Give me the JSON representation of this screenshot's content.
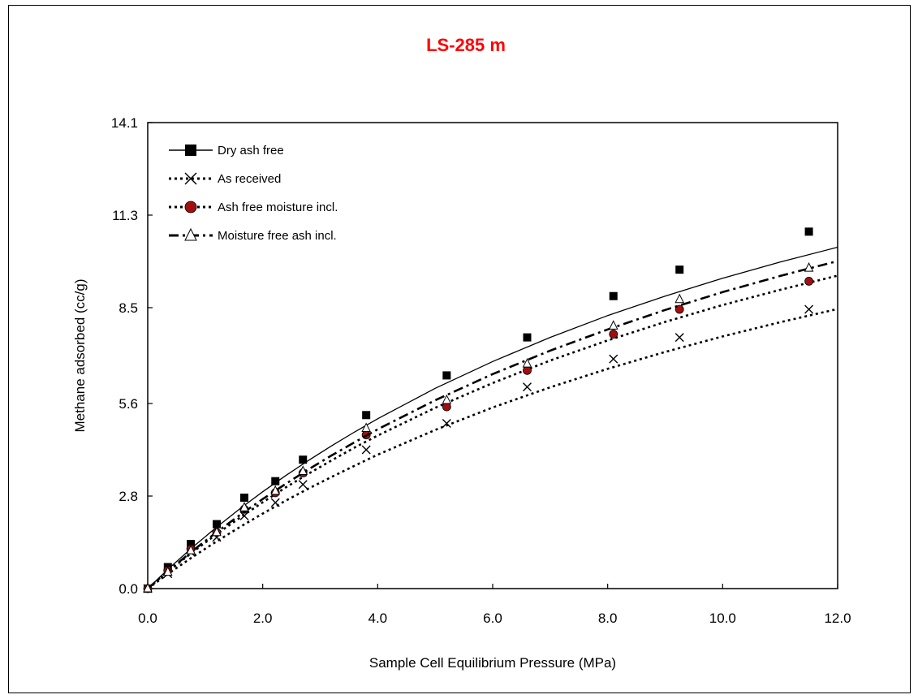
{
  "chart_data": {
    "type": "scatter",
    "title": "LS-285 m",
    "title_color": "#ff0000",
    "xlabel": "Sample Cell Equilibrium Pressure (MPa)",
    "ylabel": "Methane adsorbed (cc/g)",
    "xlim": [
      0.0,
      12.0
    ],
    "ylim": [
      0.0,
      14.1
    ],
    "x_ticks": [
      "0.0",
      "2.0",
      "4.0",
      "6.0",
      "8.0",
      "10.0",
      "12.0"
    ],
    "y_ticks": [
      "0.0",
      "2.8",
      "5.6",
      "8.5",
      "11.3",
      "14.1"
    ],
    "grid": false,
    "legend_position": "top-left",
    "series": [
      {
        "name": "Dry ash free",
        "marker": "filled-square",
        "line": "solid",
        "x": [
          0.0,
          0.35,
          0.75,
          1.2,
          1.68,
          2.22,
          2.7,
          3.8,
          5.2,
          6.6,
          8.1,
          9.25,
          11.5
        ],
        "y": [
          0.0,
          0.65,
          1.35,
          1.95,
          2.75,
          3.25,
          3.9,
          5.25,
          6.45,
          7.6,
          8.85,
          9.65,
          10.8
        ],
        "fit_y_at_x": [
          0.0,
          0.4,
          0.8,
          1.2,
          1.6,
          2.0,
          2.4,
          2.8,
          3.2,
          3.6,
          4.0,
          5.0,
          6.0,
          7.0,
          8.0,
          9.0,
          10.0,
          11.0,
          12.0
        ],
        "fit_y": [
          0.0,
          0.66,
          1.28,
          1.86,
          2.41,
          2.93,
          3.42,
          3.88,
          4.32,
          4.74,
          5.14,
          6.06,
          6.87,
          7.6,
          8.26,
          8.85,
          9.39,
          9.88,
          10.33
        ]
      },
      {
        "name": "As received",
        "marker": "cross",
        "line": "dotted",
        "x": [
          0.0,
          0.35,
          0.75,
          1.2,
          1.68,
          2.22,
          2.7,
          3.8,
          5.2,
          6.6,
          8.1,
          9.25,
          11.5
        ],
        "y": [
          0.0,
          0.45,
          1.1,
          1.55,
          2.2,
          2.6,
          3.15,
          4.2,
          5.0,
          6.1,
          6.95,
          7.6,
          8.45
        ],
        "fit_y_at_x": [
          0.0,
          0.4,
          0.8,
          1.2,
          1.6,
          2.0,
          2.4,
          2.8,
          3.2,
          3.6,
          4.0,
          5.0,
          6.0,
          7.0,
          8.0,
          9.0,
          10.0,
          11.0,
          12.0
        ],
        "fit_y": [
          0.0,
          0.5,
          0.98,
          1.43,
          1.86,
          2.27,
          2.66,
          3.03,
          3.38,
          3.72,
          4.05,
          4.8,
          5.48,
          6.09,
          6.65,
          7.16,
          7.63,
          8.06,
          8.46
        ]
      },
      {
        "name": "Ash free moisture incl.",
        "marker": "filled-circle",
        "line": "dotted",
        "marker_fill": "#a01010",
        "x": [
          0.0,
          0.35,
          0.75,
          1.2,
          1.68,
          2.22,
          2.7,
          3.8,
          5.2,
          6.6,
          8.1,
          9.25,
          11.5
        ],
        "y": [
          0.0,
          0.55,
          1.2,
          1.7,
          2.4,
          2.9,
          3.5,
          4.65,
          5.5,
          6.6,
          7.7,
          8.45,
          9.3
        ],
        "fit_y_at_x": [
          0.0,
          0.4,
          0.8,
          1.2,
          1.6,
          2.0,
          2.4,
          2.8,
          3.2,
          3.6,
          4.0,
          5.0,
          6.0,
          7.0,
          8.0,
          9.0,
          10.0,
          11.0,
          12.0
        ],
        "fit_y": [
          0.0,
          0.58,
          1.13,
          1.65,
          2.14,
          2.61,
          3.06,
          3.48,
          3.88,
          4.27,
          4.63,
          5.47,
          6.22,
          6.9,
          7.51,
          8.07,
          8.58,
          9.04,
          9.47
        ]
      },
      {
        "name": "Moisture free ash incl.",
        "marker": "open-triangle",
        "line": "dash-dot",
        "x": [
          0.0,
          0.35,
          0.75,
          1.2,
          1.68,
          2.22,
          2.7,
          3.8,
          5.2,
          6.6,
          8.1,
          9.25,
          11.5
        ],
        "y": [
          0.0,
          0.5,
          1.15,
          1.7,
          2.45,
          2.95,
          3.55,
          4.85,
          5.7,
          6.8,
          7.95,
          8.75,
          9.7
        ],
        "fit_y_at_x": [
          0.0,
          0.4,
          0.8,
          1.2,
          1.6,
          2.0,
          2.4,
          2.8,
          3.2,
          3.6,
          4.0,
          5.0,
          6.0,
          7.0,
          8.0,
          9.0,
          10.0,
          11.0,
          12.0
        ],
        "fit_y": [
          0.0,
          0.6,
          1.17,
          1.71,
          2.22,
          2.71,
          3.17,
          3.61,
          4.03,
          4.43,
          4.82,
          5.7,
          6.49,
          7.2,
          7.84,
          8.43,
          8.97,
          9.46,
          9.91
        ]
      }
    ]
  }
}
